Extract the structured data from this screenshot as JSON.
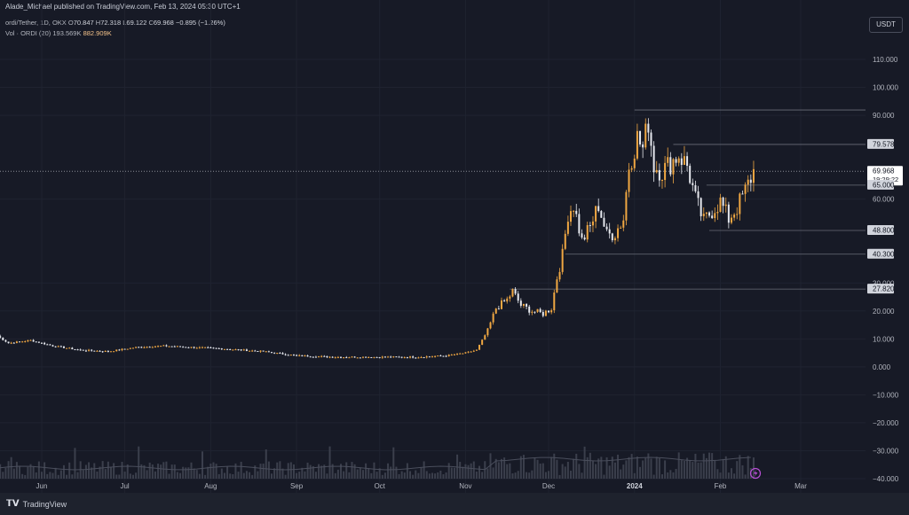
{
  "publisher": "Alade_Michael published on TradingView.com, Feb 13, 2024 05:30 UTC+1",
  "legend": {
    "symbol": "ordi/Tether, 1D, OKX",
    "o_label": "O",
    "o": "70.847",
    "h_label": "H",
    "h": "72.318",
    "l_label": "L",
    "l": "69.122",
    "c_label": "C",
    "c": "69.968",
    "chg": "−0.895 (−1.26%)",
    "vol_label": "Vol · ORDI (20)",
    "vol_ma": "193.569K",
    "vol": "882.909K"
  },
  "currency_button": "USDT",
  "footer_brand": "TradingView",
  "chart_data": {
    "type": "candlestick",
    "y_ticks": [
      "110.000",
      "100.000",
      "90.000",
      "79.578",
      "69.968",
      "65.000",
      "60.000",
      "48.800",
      "40.300",
      "30.000",
      "27.820",
      "20.000",
      "10.000",
      "0.000",
      "−10.000",
      "−20.000",
      "−30.000",
      "−40.000"
    ],
    "x_labels": [
      "Jun",
      "Jul",
      "Aug",
      "Sep",
      "Oct",
      "Nov",
      "Dec",
      "2024",
      "Feb",
      "Mar"
    ],
    "current_price": "69.968",
    "countdown": "19:29:22",
    "horizontal_levels": [
      {
        "label": "91.900",
        "value": 91.9,
        "from": "2024-01-01"
      },
      {
        "label": "79.578",
        "value": 79.578,
        "from": "2024-01-15"
      },
      {
        "label": "65.000",
        "value": 65.0,
        "from": "2024-01-27"
      },
      {
        "label": "48.800",
        "value": 48.8,
        "from": "2024-01-28"
      },
      {
        "label": "40.300",
        "value": 40.3,
        "from": "2023-12-07"
      },
      {
        "label": "27.820",
        "value": 27.82,
        "from": "2023-11-17"
      }
    ],
    "series_points": [
      [
        "2023-05-16",
        11
      ],
      [
        "2023-05-20",
        8.5
      ],
      [
        "2023-05-28",
        9.5
      ],
      [
        "2023-06-05",
        7.5
      ],
      [
        "2023-06-15",
        6
      ],
      [
        "2023-06-25",
        5.5
      ],
      [
        "2023-07-05",
        7
      ],
      [
        "2023-07-15",
        7.5
      ],
      [
        "2023-07-25",
        7
      ],
      [
        "2023-08-05",
        6.5
      ],
      [
        "2023-08-20",
        5.5
      ],
      [
        "2023-09-01",
        4
      ],
      [
        "2023-09-15",
        3.5
      ],
      [
        "2023-10-01",
        3.5
      ],
      [
        "2023-10-15",
        3.5
      ],
      [
        "2023-10-25",
        4
      ],
      [
        "2023-11-01",
        5
      ],
      [
        "2023-11-05",
        6
      ],
      [
        "2023-11-09",
        13
      ],
      [
        "2023-11-12",
        21
      ],
      [
        "2023-11-16",
        24
      ],
      [
        "2023-11-18",
        27
      ],
      [
        "2023-11-21",
        22
      ],
      [
        "2023-11-25",
        20
      ],
      [
        "2023-11-29",
        19
      ],
      [
        "2023-12-02",
        21
      ],
      [
        "2023-12-04",
        32
      ],
      [
        "2023-12-06",
        40
      ],
      [
        "2023-12-08",
        55
      ],
      [
        "2023-12-10",
        58
      ],
      [
        "2023-12-13",
        45
      ],
      [
        "2023-12-16",
        50
      ],
      [
        "2023-12-19",
        58
      ],
      [
        "2023-12-22",
        47
      ],
      [
        "2023-12-25",
        48
      ],
      [
        "2023-12-28",
        53
      ],
      [
        "2023-12-30",
        72
      ],
      [
        "2024-01-02",
        82
      ],
      [
        "2024-01-04",
        78
      ],
      [
        "2024-01-06",
        88
      ],
      [
        "2024-01-08",
        72
      ],
      [
        "2024-01-11",
        70
      ],
      [
        "2024-01-14",
        73
      ],
      [
        "2024-01-17",
        76
      ],
      [
        "2024-01-20",
        72
      ],
      [
        "2024-01-23",
        60
      ],
      [
        "2024-01-26",
        52
      ],
      [
        "2024-01-29",
        56
      ],
      [
        "2024-02-01",
        59
      ],
      [
        "2024-02-04",
        53
      ],
      [
        "2024-02-07",
        57
      ],
      [
        "2024-02-10",
        63
      ],
      [
        "2024-02-13",
        70
      ]
    ]
  }
}
